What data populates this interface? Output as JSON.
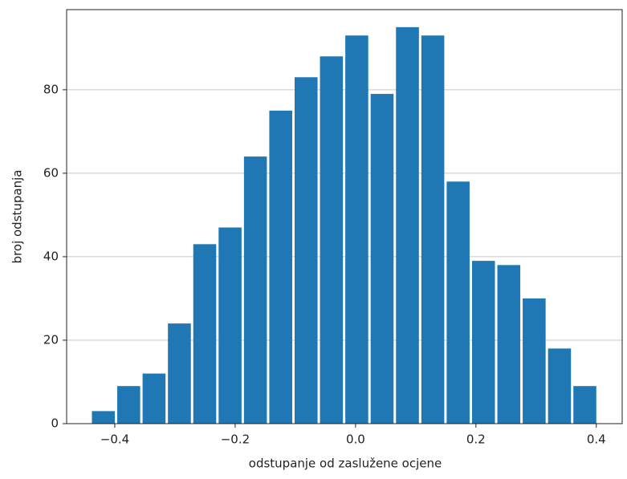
{
  "chart_data": {
    "type": "histogram",
    "x_label": "odstupanje od zaslužene ocjene",
    "y_label": "broj odstupanja",
    "bins": [
      -0.44,
      -0.3979,
      -0.3558,
      -0.3137,
      -0.2716,
      -0.2295,
      -0.1874,
      -0.1453,
      -0.1032,
      -0.0611,
      -0.019,
      0.0231,
      0.0652,
      0.1073,
      0.1494,
      0.1915,
      0.2336,
      0.2757,
      0.3178,
      0.3599,
      0.402
    ],
    "values": [
      3,
      9,
      12,
      24,
      43,
      47,
      64,
      75,
      83,
      88,
      93,
      79,
      95,
      93,
      58,
      39,
      38,
      30,
      18,
      9
    ],
    "color": "#1f77b4",
    "xlim": [
      -0.48,
      0.443
    ],
    "ylim": [
      0,
      99.2
    ],
    "xticks": [
      {
        "value": -0.4,
        "label": "−0.4"
      },
      {
        "value": -0.2,
        "label": "−0.2"
      },
      {
        "value": 0,
        "label": "0.0"
      },
      0.2,
      0.4
    ],
    "yticks": [
      0,
      20,
      40,
      60,
      80
    ],
    "grid": "y"
  }
}
